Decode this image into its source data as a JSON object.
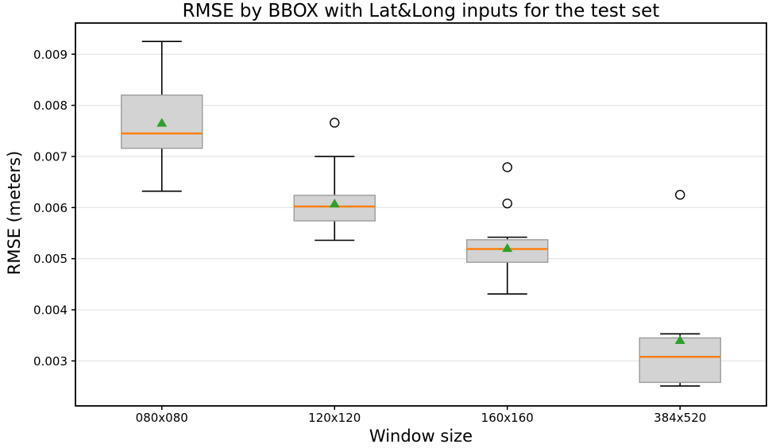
{
  "chart_data": {
    "type": "boxplot",
    "title": "RMSE by BBOX with Lat&Long inputs for the test set",
    "xlabel": "Window size",
    "ylabel": "RMSE (meters)",
    "categories": [
      "080x080",
      "120x120",
      "160x160",
      "384x520"
    ],
    "yticks": [
      0.003,
      0.004,
      0.005,
      0.006,
      0.007,
      0.008,
      0.009
    ],
    "ytick_labels": [
      "0.003",
      "0.004",
      "0.005",
      "0.006",
      "0.007",
      "0.008",
      "0.009"
    ],
    "ylim": [
      0.00212,
      0.00961
    ],
    "grid": "horizontal-only",
    "legend": "none",
    "boxes": [
      {
        "label": "080x080",
        "whislo": 0.00632,
        "q1": 0.00716,
        "med": 0.00745,
        "q3": 0.0082,
        "whishi": 0.00925,
        "mean": 0.00766,
        "fliers": []
      },
      {
        "label": "120x120",
        "whislo": 0.00536,
        "q1": 0.00574,
        "med": 0.00602,
        "q3": 0.00624,
        "whishi": 0.007,
        "mean": 0.00608,
        "fliers": [
          0.00766
        ]
      },
      {
        "label": "160x160",
        "whislo": 0.00431,
        "q1": 0.00493,
        "med": 0.00519,
        "q3": 0.00537,
        "whishi": 0.00542,
        "mean": 0.00521,
        "fliers": [
          0.00608,
          0.00679
        ]
      },
      {
        "label": "384x520",
        "whislo": 0.00251,
        "q1": 0.00258,
        "med": 0.00308,
        "q3": 0.00345,
        "whishi": 0.00353,
        "mean": 0.00341,
        "fliers": [
          0.00625
        ]
      }
    ],
    "colors": {
      "box_fill": "#d3d3d3",
      "box_edge": "#9c9c9c",
      "median": "#ff7f0e",
      "mean_marker": "#2ca02c",
      "whisker": "#000000",
      "flier_edge": "#000000",
      "grid": "#e6e6e6",
      "spine": "#000000"
    }
  }
}
